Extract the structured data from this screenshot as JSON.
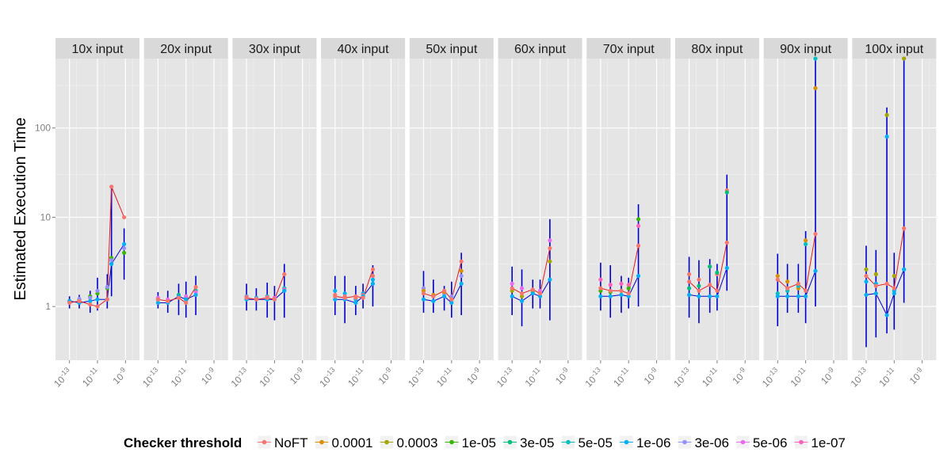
{
  "chart_data": {
    "type": "line",
    "y_label": "Estimated Execution Time",
    "y_scale": "log",
    "y_ticks": [
      1,
      10,
      100
    ],
    "y_range": [
      0.25,
      600
    ],
    "x_scale": "log",
    "x_range": [
      1e-14,
      1e-08
    ],
    "x_tick_labels": [
      {
        "base": "10",
        "exp": "-13",
        "value": 1e-13
      },
      {
        "base": "10",
        "exp": "-11",
        "value": 1e-11
      },
      {
        "base": "10",
        "exp": "-9",
        "value": 1e-09
      }
    ],
    "x_values": [
      1e-13,
      5e-13,
      3e-12,
      1e-11,
      5e-11,
      1e-10,
      8e-10
    ],
    "grid": true,
    "legend": {
      "title": "Checker threshold",
      "position": "bottom",
      "entries": [
        {
          "label": "NoFT",
          "color": "#F8766D"
        },
        {
          "label": "0.0001",
          "color": "#D89000"
        },
        {
          "label": "0.0003",
          "color": "#A3A500"
        },
        {
          "label": "1e-05",
          "color": "#39B600"
        },
        {
          "label": "3e-05",
          "color": "#00BF7D"
        },
        {
          "label": "5e-05",
          "color": "#00BFC4"
        },
        {
          "label": "1e-06",
          "color": "#00B0F6"
        },
        {
          "label": "3e-06",
          "color": "#9590FF"
        },
        {
          "label": "5e-06",
          "color": "#E76BF3"
        },
        {
          "label": "1e-07",
          "color": "#FF62BC"
        }
      ]
    },
    "red_line_color": "#E41A1C",
    "blue_line_color": "#0000CD",
    "panels": [
      {
        "label": "10x input",
        "red": [
          1.1,
          1.15,
          1.05,
          1.0,
          1.2,
          22,
          10
        ],
        "blue": [
          1.15,
          1.1,
          1.15,
          1.2,
          1.2,
          3.0,
          5.0
        ],
        "err_low": [
          0.95,
          0.95,
          0.85,
          0.9,
          0.95,
          1.3,
          2.0
        ],
        "err_high": [
          1.3,
          1.35,
          1.5,
          2.1,
          2.3,
          22,
          7.5
        ],
        "extras": [
          [
            1.15,
            1.2,
            1.3,
            1.4,
            1.6,
            3.5,
            4.0
          ],
          [
            1.12,
            1.22,
            1.25,
            1.5,
            1.65,
            3.3,
            4.5
          ]
        ]
      },
      {
        "label": "20x input",
        "red": [
          1.2,
          1.15,
          1.25,
          1.1,
          1.65,
          null,
          null
        ],
        "blue": [
          1.1,
          1.1,
          1.3,
          1.2,
          1.35,
          null,
          null
        ],
        "err_low": [
          0.95,
          0.85,
          0.8,
          0.75,
          0.8,
          null,
          null
        ],
        "err_high": [
          1.45,
          1.5,
          1.8,
          1.9,
          2.2,
          null,
          null
        ],
        "extras": [
          [
            1.2,
            1.15,
            1.35,
            1.25,
            1.5,
            null,
            null
          ],
          [
            1.25,
            1.2,
            1.3,
            1.3,
            1.45,
            null,
            null
          ]
        ]
      },
      {
        "label": "30x input",
        "red": [
          1.25,
          1.2,
          1.25,
          1.2,
          2.3,
          null,
          null
        ],
        "blue": [
          1.2,
          1.2,
          1.2,
          1.2,
          1.5,
          null,
          null
        ],
        "err_low": [
          0.9,
          0.9,
          0.75,
          0.7,
          0.75,
          null,
          null
        ],
        "err_high": [
          1.8,
          1.6,
          1.85,
          1.7,
          3.0,
          null,
          null
        ],
        "extras": [
          [
            1.3,
            1.25,
            1.3,
            1.2,
            1.6,
            null,
            null
          ],
          [
            1.28,
            1.22,
            1.27,
            1.25,
            1.55,
            null,
            null
          ]
        ]
      },
      {
        "label": "40x input",
        "red": [
          1.3,
          1.25,
          1.3,
          1.25,
          2.6,
          null,
          null
        ],
        "blue": [
          1.2,
          1.2,
          1.1,
          1.3,
          1.8,
          null,
          null
        ],
        "err_low": [
          0.8,
          0.65,
          0.8,
          0.95,
          1.0,
          null,
          null
        ],
        "err_high": [
          2.2,
          2.2,
          1.7,
          1.8,
          2.9,
          null,
          null
        ],
        "extras": [
          [
            1.5,
            1.4,
            1.2,
            1.4,
            2.0,
            null,
            null
          ],
          [
            1.35,
            1.3,
            1.25,
            1.35,
            2.2,
            null,
            null
          ]
        ]
      },
      {
        "label": "50x input",
        "red": [
          1.4,
          1.3,
          1.5,
          1.2,
          3.2,
          null,
          null
        ],
        "blue": [
          1.2,
          1.15,
          1.3,
          1.1,
          1.8,
          null,
          null
        ],
        "err_low": [
          0.85,
          0.85,
          0.9,
          0.75,
          0.8,
          null,
          null
        ],
        "err_high": [
          2.5,
          2.0,
          1.7,
          1.9,
          4.0,
          null,
          null
        ],
        "extras": [
          [
            1.6,
            1.3,
            1.4,
            1.3,
            2.2,
            null,
            null
          ],
          [
            1.5,
            1.35,
            1.45,
            1.2,
            2.5,
            null,
            null
          ]
        ]
      },
      {
        "label": "60x input",
        "red": [
          1.6,
          1.4,
          1.55,
          1.4,
          4.5,
          null,
          null
        ],
        "blue": [
          1.3,
          1.15,
          1.4,
          1.3,
          2.0,
          null,
          null
        ],
        "err_low": [
          0.8,
          0.6,
          0.95,
          0.95,
          0.7,
          null,
          null
        ],
        "err_high": [
          2.8,
          2.6,
          2.0,
          2.0,
          9.5,
          null,
          null
        ],
        "extras": [
          [
            1.8,
            1.6,
            1.5,
            1.5,
            5.5,
            null,
            null
          ],
          [
            1.5,
            1.3,
            1.45,
            1.4,
            3.2,
            null,
            null
          ]
        ]
      },
      {
        "label": "70x input",
        "red": [
          1.6,
          1.5,
          1.5,
          1.4,
          4.8,
          null,
          null
        ],
        "blue": [
          1.3,
          1.3,
          1.35,
          1.3,
          2.2,
          null,
          null
        ],
        "err_low": [
          0.9,
          0.75,
          0.85,
          0.95,
          1.0,
          null,
          null
        ],
        "err_high": [
          3.1,
          2.9,
          2.2,
          2.1,
          14,
          null,
          null
        ],
        "extras": [
          [
            2.0,
            1.75,
            1.8,
            1.75,
            8.0,
            null,
            null
          ],
          [
            1.5,
            1.45,
            1.5,
            1.6,
            9.5,
            null,
            null
          ]
        ]
      },
      {
        "label": "80x input",
        "red": [
          1.9,
          1.5,
          1.75,
          1.5,
          5.2,
          null,
          null
        ],
        "blue": [
          1.35,
          1.3,
          1.3,
          1.3,
          2.7,
          null,
          null
        ],
        "err_low": [
          0.75,
          0.65,
          0.85,
          0.9,
          1.5,
          null,
          null
        ],
        "err_high": [
          3.6,
          3.3,
          3.4,
          3.0,
          30,
          null,
          null
        ],
        "extras": [
          [
            2.3,
            2.0,
            2.8,
            2.3,
            20,
            null,
            null
          ],
          [
            1.6,
            1.7,
            2.8,
            2.4,
            19,
            null,
            null
          ]
        ]
      },
      {
        "label": "90x input",
        "red": [
          2.0,
          1.6,
          1.8,
          1.5,
          6.5,
          null,
          null
        ],
        "blue": [
          1.3,
          1.3,
          1.3,
          1.3,
          2.5,
          null,
          null
        ],
        "err_low": [
          0.6,
          0.85,
          0.85,
          0.65,
          1.0,
          null,
          null
        ],
        "err_high": [
          3.9,
          3.0,
          3.0,
          7.0,
          600,
          null,
          null
        ],
        "extras": [
          [
            2.2,
            1.9,
            1.6,
            5.5,
            280,
            null,
            null
          ],
          [
            1.4,
            1.5,
            1.7,
            5.0,
            600,
            null,
            null
          ]
        ]
      },
      {
        "label": "100x input",
        "red": [
          2.2,
          1.7,
          1.8,
          1.6,
          7.5,
          null,
          null
        ],
        "blue": [
          1.35,
          1.4,
          0.8,
          1.4,
          2.6,
          null,
          null
        ],
        "err_low": [
          0.35,
          0.45,
          0.5,
          0.55,
          1.1,
          null,
          null
        ],
        "err_high": [
          4.8,
          4.3,
          170,
          4.0,
          600,
          null,
          null
        ],
        "extras": [
          [
            2.6,
            2.3,
            140,
            2.2,
            600,
            null,
            null
          ],
          [
            1.9,
            1.8,
            80,
            1.5,
            2.6,
            null,
            null
          ]
        ]
      }
    ]
  }
}
